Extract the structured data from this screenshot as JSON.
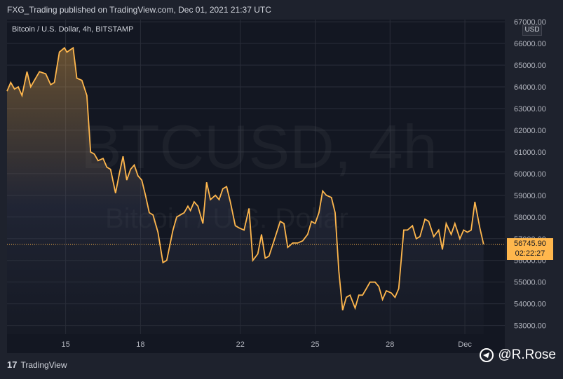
{
  "header": {
    "text": "FXG_Trading published on TradingView.com, Dec 01, 2021 21:37 UTC"
  },
  "chart": {
    "title": "Bitcoin / U.S. Dollar, 4h, BITSTAMP",
    "watermark_symbol": "BTCUSD, 4h",
    "watermark_name": "Bitcoin / U.S. Dollar",
    "currency_badge": "USD",
    "last_price": "56745.90",
    "countdown": "02:22:27",
    "line_color": "#ffb74d"
  },
  "footer": {
    "brand": "TradingView"
  },
  "signature": {
    "text": "@R.Rose"
  },
  "chart_data": {
    "type": "area",
    "title": "Bitcoin / U.S. Dollar, 4h, BITSTAMP",
    "xlabel": "",
    "ylabel": "",
    "ylim": [
      52600,
      67100
    ],
    "y_ticks": [
      "53000.00",
      "54000.00",
      "55000.00",
      "56000.00",
      "57000.00",
      "58000.00",
      "59000.00",
      "60000.00",
      "61000.00",
      "62000.00",
      "63000.00",
      "64000.00",
      "65000.00",
      "66000.00",
      "67000.00"
    ],
    "x_ticks": [
      {
        "label": "15",
        "x": 15
      },
      {
        "label": "18",
        "x": 18
      },
      {
        "label": "22",
        "x": 22
      },
      {
        "label": "25",
        "x": 25
      },
      {
        "label": "28",
        "x": 28
      },
      {
        "label": "Dec",
        "x": 31
      }
    ],
    "series": [
      {
        "values": [
          [
            12.65,
            63800
          ],
          [
            12.8,
            64200
          ],
          [
            12.95,
            63900
          ],
          [
            13.1,
            64000
          ],
          [
            13.25,
            63600
          ],
          [
            13.45,
            64700
          ],
          [
            13.6,
            64000
          ],
          [
            13.8,
            64400
          ],
          [
            13.95,
            64700
          ],
          [
            14.2,
            64600
          ],
          [
            14.4,
            64100
          ],
          [
            14.55,
            64200
          ],
          [
            14.75,
            65600
          ],
          [
            14.95,
            65800
          ],
          [
            15.05,
            65600
          ],
          [
            15.3,
            65800
          ],
          [
            15.45,
            64400
          ],
          [
            15.65,
            64300
          ],
          [
            15.85,
            63600
          ],
          [
            16.0,
            61000
          ],
          [
            16.15,
            60900
          ],
          [
            16.3,
            60600
          ],
          [
            16.5,
            60700
          ],
          [
            16.65,
            60300
          ],
          [
            16.8,
            60200
          ],
          [
            17.0,
            59100
          ],
          [
            17.15,
            60000
          ],
          [
            17.3,
            60800
          ],
          [
            17.45,
            59700
          ],
          [
            17.6,
            60200
          ],
          [
            17.75,
            60400
          ],
          [
            17.9,
            59900
          ],
          [
            18.05,
            59700
          ],
          [
            18.2,
            59000
          ],
          [
            18.35,
            58200
          ],
          [
            18.5,
            58100
          ],
          [
            18.7,
            57300
          ],
          [
            18.9,
            55900
          ],
          [
            19.05,
            56000
          ],
          [
            19.3,
            57400
          ],
          [
            19.45,
            58000
          ],
          [
            19.6,
            58100
          ],
          [
            19.75,
            58200
          ],
          [
            19.9,
            58500
          ],
          [
            20.0,
            58300
          ],
          [
            20.15,
            58700
          ],
          [
            20.3,
            58500
          ],
          [
            20.5,
            57700
          ],
          [
            20.65,
            59600
          ],
          [
            20.8,
            58800
          ],
          [
            21.0,
            59000
          ],
          [
            21.15,
            58800
          ],
          [
            21.3,
            59300
          ],
          [
            21.45,
            59400
          ],
          [
            21.6,
            58700
          ],
          [
            21.8,
            57600
          ],
          [
            21.95,
            57500
          ],
          [
            22.15,
            57400
          ],
          [
            22.35,
            58400
          ],
          [
            22.5,
            56000
          ],
          [
            22.7,
            56300
          ],
          [
            22.85,
            57200
          ],
          [
            23.0,
            56100
          ],
          [
            23.15,
            56200
          ],
          [
            23.35,
            56900
          ],
          [
            23.6,
            57800
          ],
          [
            23.75,
            57700
          ],
          [
            23.9,
            56600
          ],
          [
            24.1,
            56800
          ],
          [
            24.3,
            56800
          ],
          [
            24.5,
            56900
          ],
          [
            24.7,
            57200
          ],
          [
            24.85,
            57800
          ],
          [
            25.0,
            57700
          ],
          [
            25.15,
            58200
          ],
          [
            25.3,
            59200
          ],
          [
            25.45,
            59000
          ],
          [
            25.65,
            58900
          ],
          [
            25.8,
            58200
          ],
          [
            25.95,
            55500
          ],
          [
            26.1,
            53700
          ],
          [
            26.25,
            54300
          ],
          [
            26.4,
            54400
          ],
          [
            26.6,
            53800
          ],
          [
            26.75,
            54400
          ],
          [
            26.9,
            54400
          ],
          [
            27.05,
            54700
          ],
          [
            27.2,
            55000
          ],
          [
            27.4,
            55000
          ],
          [
            27.55,
            54800
          ],
          [
            27.7,
            54200
          ],
          [
            27.85,
            54600
          ],
          [
            28.05,
            54500
          ],
          [
            28.2,
            54300
          ],
          [
            28.35,
            54700
          ],
          [
            28.55,
            57400
          ],
          [
            28.7,
            57400
          ],
          [
            28.9,
            57600
          ],
          [
            29.05,
            57000
          ],
          [
            29.2,
            57100
          ],
          [
            29.4,
            57900
          ],
          [
            29.55,
            57800
          ],
          [
            29.75,
            57100
          ],
          [
            29.95,
            57400
          ],
          [
            30.1,
            56500
          ],
          [
            30.25,
            57700
          ],
          [
            30.45,
            57200
          ],
          [
            30.6,
            57700
          ],
          [
            30.8,
            57000
          ],
          [
            30.95,
            57400
          ],
          [
            31.1,
            57300
          ],
          [
            31.25,
            57400
          ],
          [
            31.4,
            58700
          ],
          [
            31.6,
            57500
          ],
          [
            31.75,
            56746
          ]
        ]
      }
    ],
    "last_value": 56745.9
  }
}
